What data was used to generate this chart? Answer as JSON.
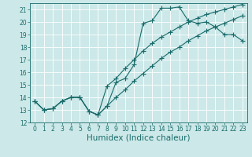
{
  "xlabel": "Humidex (Indice chaleur)",
  "x_data": [
    0,
    1,
    2,
    3,
    4,
    5,
    6,
    7,
    8,
    9,
    10,
    11,
    12,
    13,
    14,
    15,
    16,
    17,
    18,
    19,
    20,
    21,
    22,
    23
  ],
  "line1_y": [
    13.7,
    13.0,
    13.1,
    13.7,
    14.0,
    14.0,
    12.9,
    12.6,
    13.3,
    15.2,
    15.5,
    16.6,
    19.9,
    20.1,
    21.1,
    21.1,
    21.2,
    20.1,
    19.9,
    20.0,
    19.6,
    19.0,
    19.0,
    18.5
  ],
  "line2_y": [
    13.7,
    13.0,
    13.1,
    13.7,
    14.0,
    14.0,
    12.9,
    12.6,
    14.9,
    15.5,
    16.3,
    17.0,
    17.7,
    18.3,
    18.8,
    19.2,
    19.6,
    20.0,
    20.3,
    20.6,
    20.8,
    21.0,
    21.2,
    21.4
  ],
  "line3_y": [
    13.7,
    13.0,
    13.1,
    13.7,
    14.0,
    14.0,
    12.9,
    12.6,
    13.3,
    14.0,
    14.6,
    15.3,
    15.9,
    16.5,
    17.1,
    17.6,
    18.0,
    18.5,
    18.9,
    19.3,
    19.6,
    19.9,
    20.2,
    20.5
  ],
  "bg_color": "#cce8e8",
  "grid_color": "#ffffff",
  "line_color": "#1a6b6b",
  "marker": "+",
  "markersize": 4.0,
  "xlim": [
    -0.5,
    23.5
  ],
  "ylim": [
    12,
    21.5
  ],
  "yticks": [
    12,
    13,
    14,
    15,
    16,
    17,
    18,
    19,
    20,
    21
  ],
  "xticks": [
    0,
    1,
    2,
    3,
    4,
    5,
    6,
    7,
    8,
    9,
    10,
    11,
    12,
    13,
    14,
    15,
    16,
    17,
    18,
    19,
    20,
    21,
    22,
    23
  ],
  "tick_fontsize": 5.5,
  "xlabel_fontsize": 7.5,
  "linewidth": 0.8
}
